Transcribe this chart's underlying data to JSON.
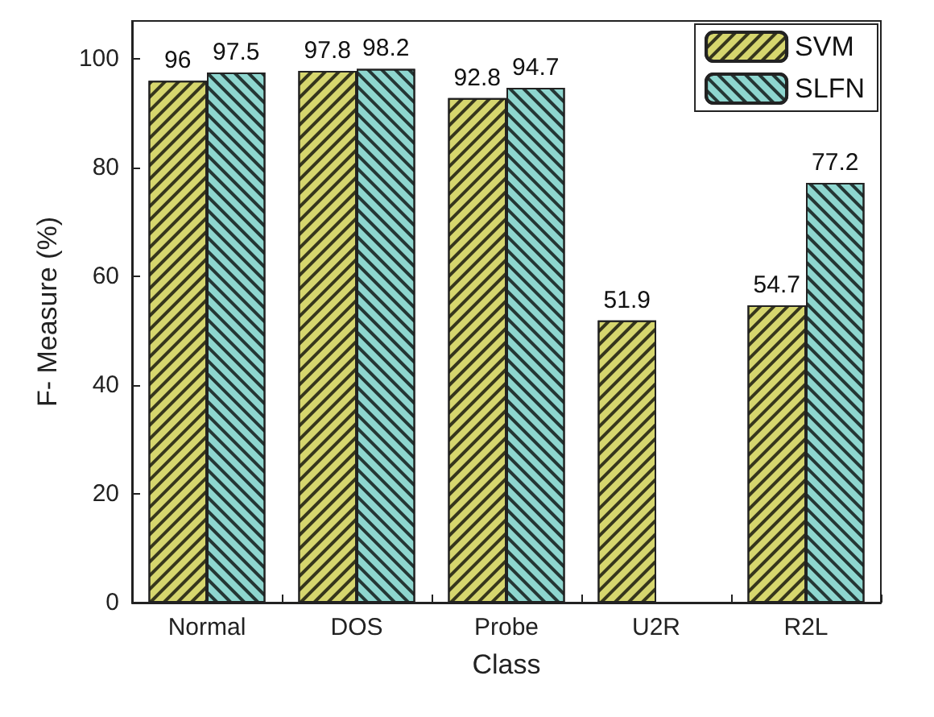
{
  "chart_data": {
    "type": "bar",
    "xlabel": "Class",
    "ylabel": "F- Measure (%)",
    "categories": [
      "Normal",
      "DOS",
      "Probe",
      "U2R",
      "R2L"
    ],
    "series": [
      {
        "name": "SVM",
        "color": "#d6d66e",
        "values": [
          96,
          97.8,
          92.8,
          51.9,
          54.7
        ]
      },
      {
        "name": "SLFN",
        "color": "#8ed6cf",
        "values": [
          97.5,
          98.2,
          94.7,
          null,
          77.2
        ]
      }
    ],
    "ylim": [
      0,
      107
    ],
    "yticks": [
      0,
      20,
      40,
      60,
      80,
      100
    ],
    "data_labels": true,
    "legend": "top right",
    "grid": false
  }
}
